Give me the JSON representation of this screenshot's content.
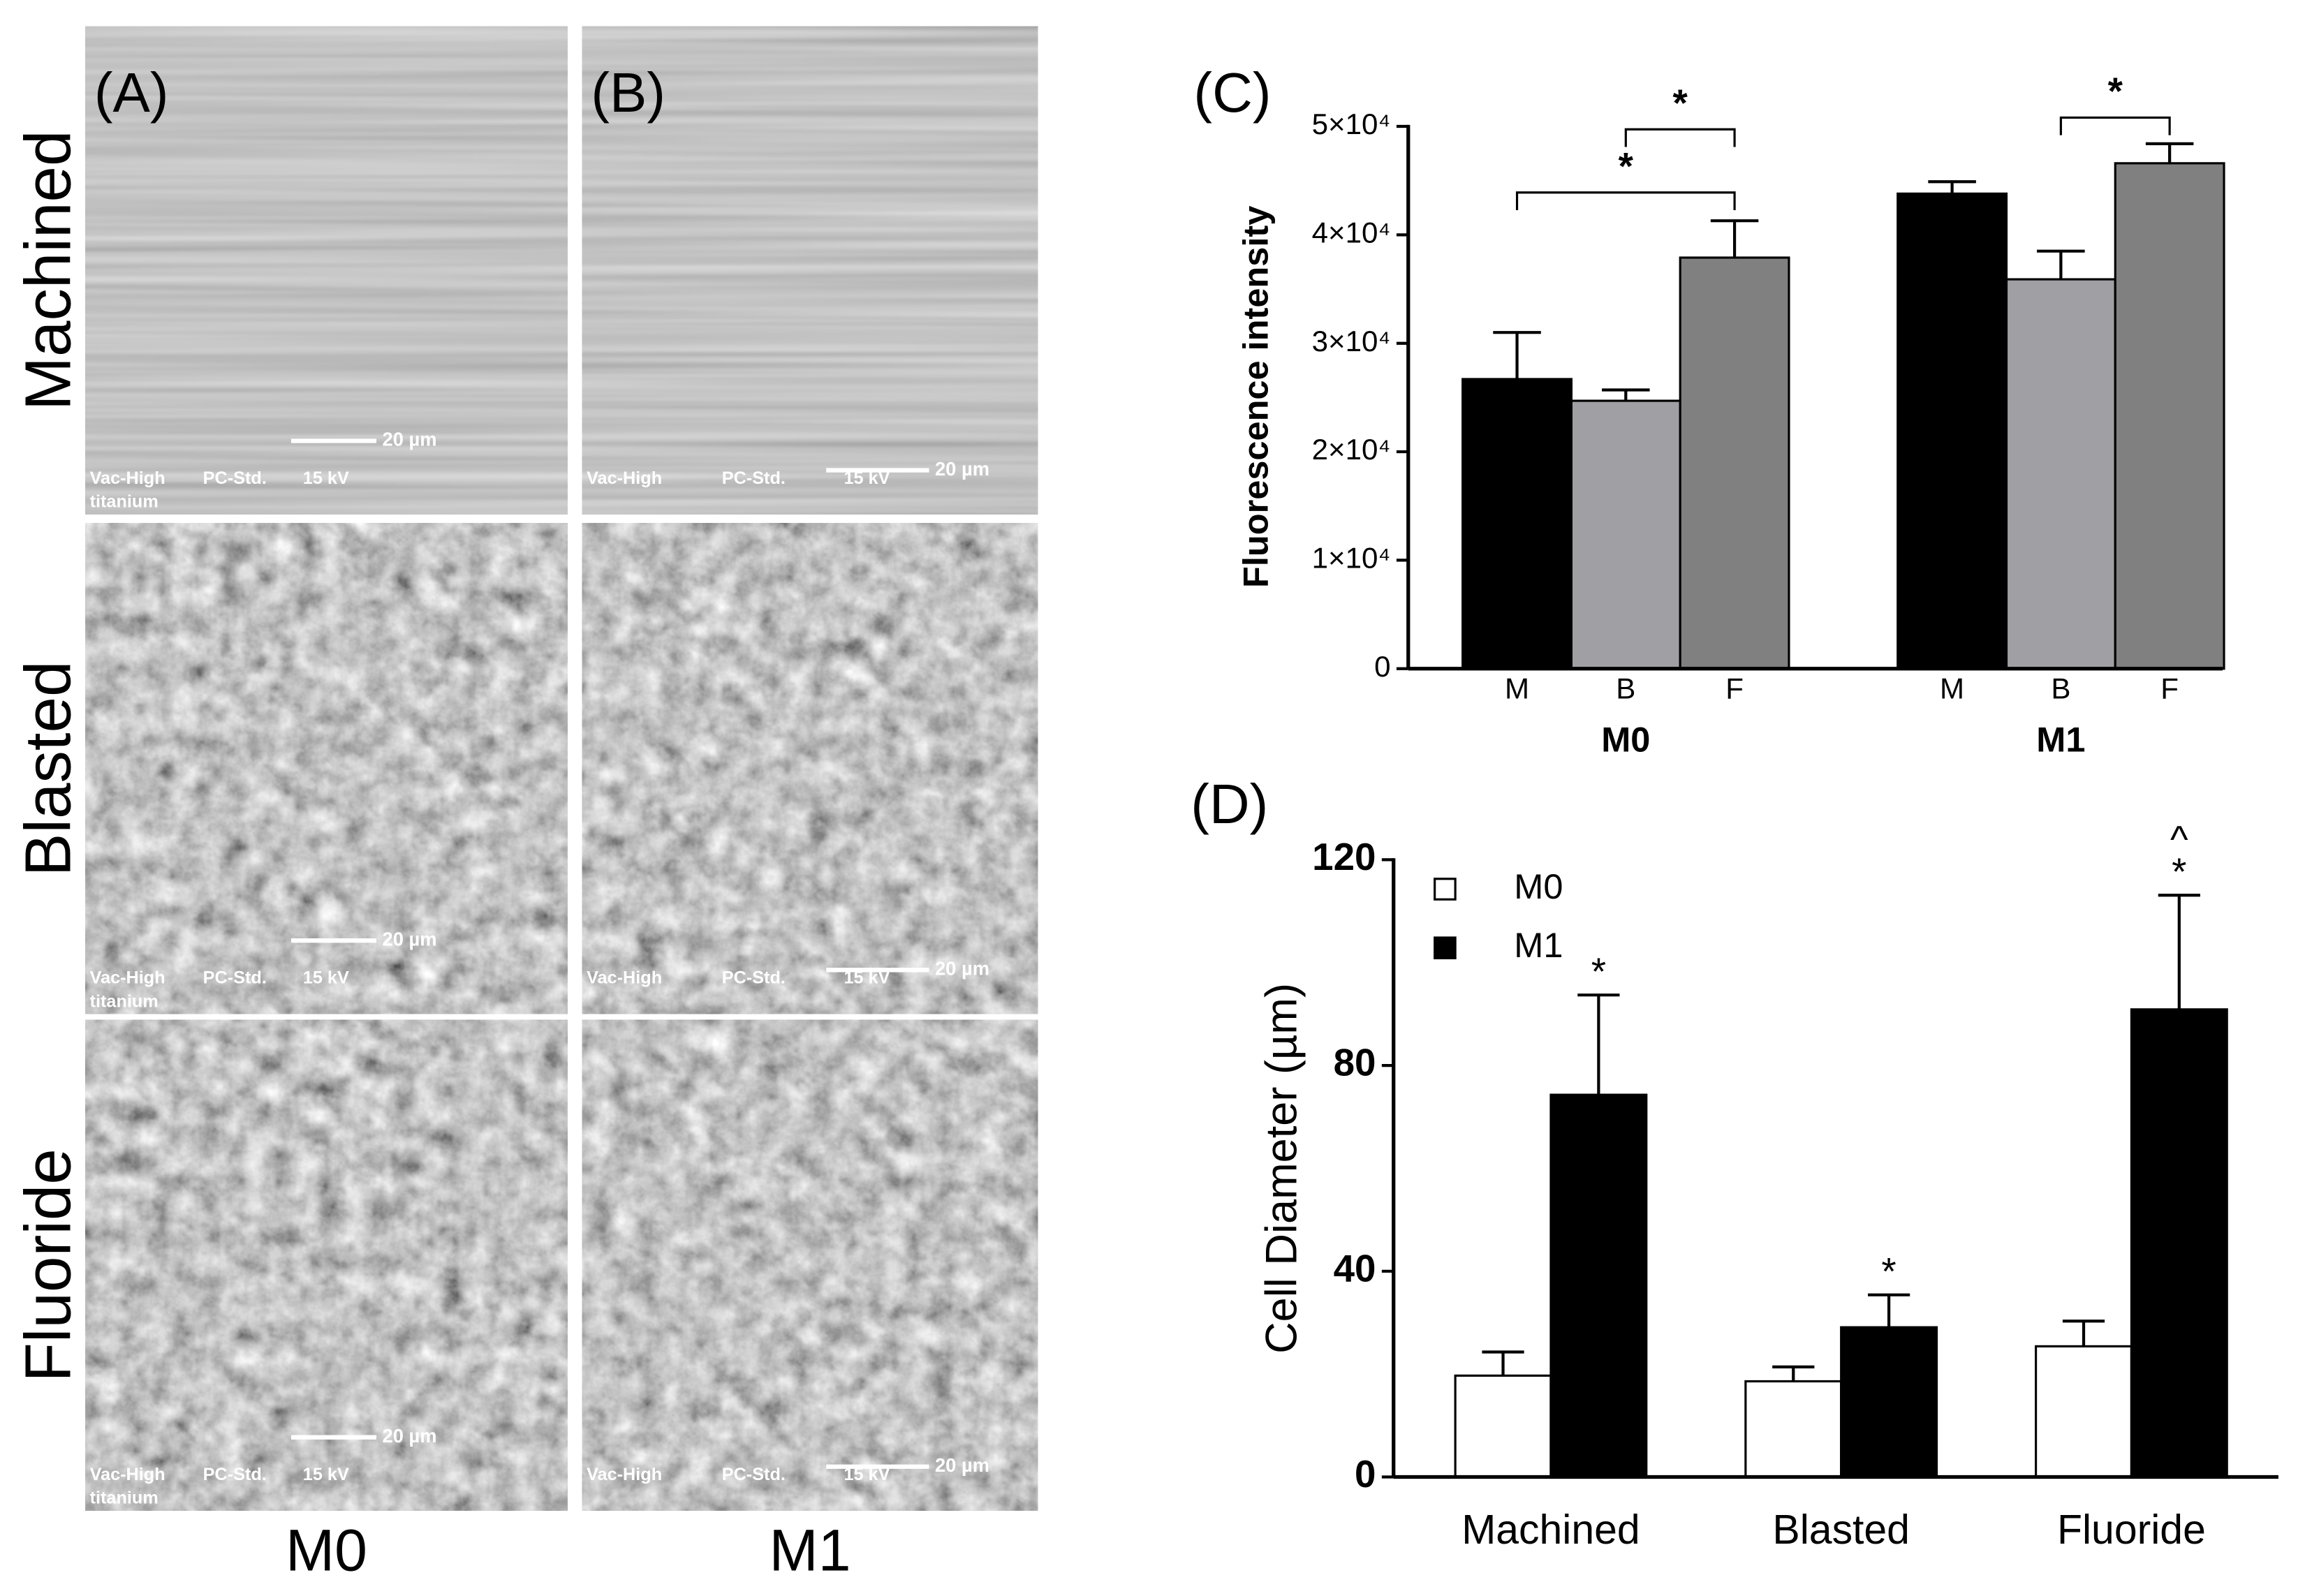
{
  "figure": {
    "panel_labels": [
      "(A)",
      "(B)"
    ],
    "row_labels": [
      "Machined",
      "Blasted",
      "Fluoride"
    ],
    "column_labels": [
      "M0",
      "M1"
    ],
    "micrographs": [
      {
        "info": [
          "Vac-High",
          "PC-Std.",
          "15 kV"
        ],
        "material": "titanium",
        "scale_bar": "20 µm"
      },
      {
        "info": [
          "Vac-High",
          "PC-Std.",
          "15 kV"
        ],
        "scale_bar": "20 µm"
      },
      {
        "info": [
          "Vac-High",
          "PC-Std.",
          "15 kV"
        ],
        "material": "titanium",
        "scale_bar": "20 µm"
      },
      {
        "info": [
          "Vac-High",
          "PC-Std.",
          "15 kV"
        ],
        "scale_bar": "20 µm"
      },
      {
        "info": [
          "Vac-High",
          "PC-Std.",
          "15 kV"
        ],
        "material": "titanium",
        "scale_bar": "20 µm"
      },
      {
        "info": [
          "Vac-High",
          "PC-Std.",
          "15 kV"
        ],
        "scale_bar": "20 µm"
      }
    ]
  },
  "chart_data": [
    {
      "type": "bar",
      "panel_label": "(C)",
      "y_label": "Fluorescence intensity",
      "categories": [
        "M0",
        "M1"
      ],
      "series": [
        {
          "name": "M",
          "color": "#000000",
          "values": [
            26700,
            43800
          ],
          "errors": [
            4300,
            1100
          ]
        },
        {
          "name": "B",
          "color": "#a0a0a4",
          "values": [
            24700,
            35900
          ],
          "errors": [
            1000,
            2600
          ]
        },
        {
          "name": "F",
          "color": "#808080",
          "values": [
            37900,
            46600
          ],
          "errors": [
            3400,
            1800
          ]
        }
      ],
      "ylim": [
        0,
        50000
      ],
      "yticks": [
        0,
        {
          "value": 10000,
          "label": "1×10⁴"
        },
        {
          "value": 20000,
          "label": "2×10⁴"
        },
        {
          "value": 30000,
          "label": "3×10⁴"
        },
        {
          "value": 40000,
          "label": "4×10⁴"
        },
        {
          "value": 50000,
          "label": "5×10⁴"
        }
      ],
      "annotations": [
        "*",
        "*",
        "*"
      ]
    },
    {
      "type": "bar",
      "panel_label": "(D)",
      "y_label": "Cell Diameter (µm)",
      "categories": [
        "Machined",
        "Blasted",
        "Fluoride"
      ],
      "series": [
        {
          "name": "M0",
          "color": "#ffffff",
          "values": [
            19.7,
            18.6,
            25.4
          ],
          "errors": [
            4.6,
            2.8,
            4.9
          ]
        },
        {
          "name": "M1",
          "color": "#000000",
          "values": [
            74.3,
            29.1,
            90.9
          ],
          "errors": [
            19.4,
            6.3,
            22.2
          ],
          "annotations": [
            "*",
            "*",
            "*"
          ],
          "upper_annotations": [
            null,
            null,
            "^"
          ]
        }
      ],
      "ylim": [
        0,
        120
      ],
      "yticks": [
        0,
        40,
        80,
        120
      ],
      "legend": "upper left"
    }
  ]
}
